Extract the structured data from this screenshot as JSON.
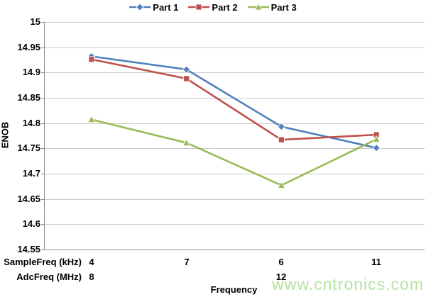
{
  "watermark": "www.cntronics.com",
  "colors": {
    "series1": "#4F81BD",
    "series2": "#C0504D",
    "series3": "#9BBB59",
    "gridline": "#C9C9C9",
    "axis": "#8C8C8C",
    "watermark": "#B7E2A2",
    "text": "#000000"
  },
  "chart_data": {
    "type": "line",
    "title": "",
    "ylabel": "ENOB",
    "xlabel": "Frequency",
    "ylim": [
      14.55,
      15
    ],
    "ytick_step": 0.05,
    "yticks": [
      "15",
      "14.95",
      "14.9",
      "14.85",
      "14.8",
      "14.75",
      "14.7",
      "14.65",
      "14.6",
      "14.55"
    ],
    "grid": "horizontal",
    "legend_position": "top",
    "x_axis_rows": [
      {
        "label": "SampleFreq (kHz)",
        "values": [
          "4",
          "7",
          "6",
          "11"
        ]
      },
      {
        "label": "AdcFreq (MHz)",
        "values": [
          "8",
          "",
          "12",
          ""
        ]
      }
    ],
    "series": [
      {
        "name": "Part 1",
        "marker": "diamond",
        "color": "#4F81BD",
        "values": [
          14.932,
          14.906,
          14.793,
          14.751
        ]
      },
      {
        "name": "Part 2",
        "marker": "square",
        "color": "#C0504D",
        "values": [
          14.926,
          14.888,
          14.767,
          14.777
        ]
      },
      {
        "name": "Part 3",
        "marker": "triangle",
        "color": "#9BBB59",
        "values": [
          14.807,
          14.761,
          14.677,
          14.768
        ]
      }
    ]
  }
}
